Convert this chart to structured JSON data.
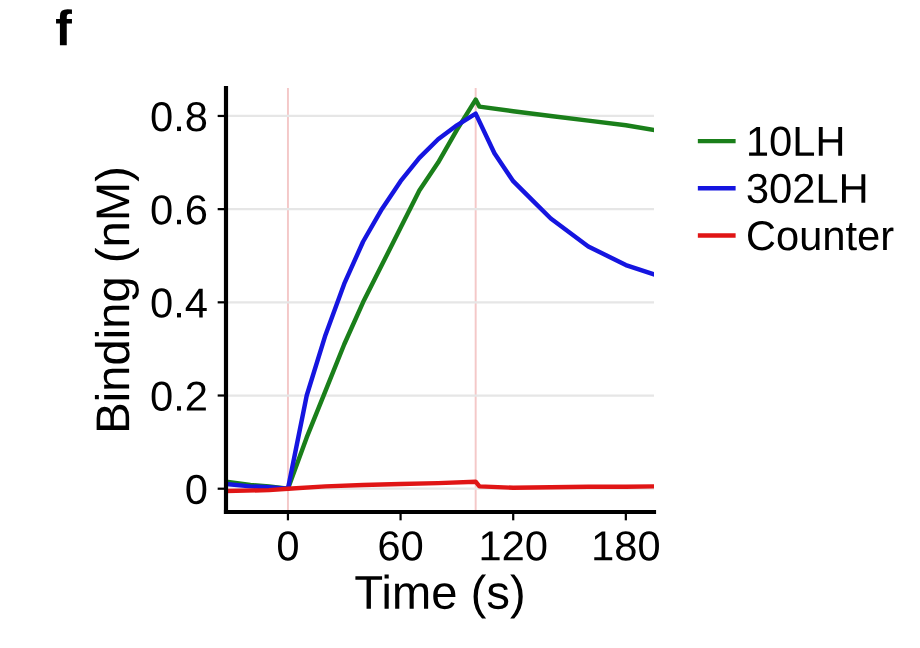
{
  "chart_data": {
    "type": "line",
    "title": "f",
    "xlabel": "Time (s)",
    "ylabel": "Binding (nM)",
    "series": [
      {
        "name": "10LH",
        "color": "#1a7f1a",
        "x": [
          -33,
          -20,
          -10,
          0,
          10,
          20,
          30,
          40,
          50,
          60,
          70,
          80,
          90,
          100,
          102,
          120,
          140,
          160,
          180,
          195
        ],
        "values": [
          0.015,
          0.008,
          0.005,
          0.0,
          0.11,
          0.21,
          0.31,
          0.4,
          0.48,
          0.56,
          0.64,
          0.7,
          0.77,
          0.835,
          0.82,
          0.81,
          0.8,
          0.79,
          0.78,
          0.77
        ]
      },
      {
        "name": "302LH",
        "color": "#1515e0",
        "x": [
          -33,
          -20,
          -10,
          0,
          10,
          20,
          30,
          40,
          50,
          60,
          70,
          80,
          90,
          100,
          110,
          120,
          130,
          140,
          150,
          160,
          170,
          180,
          195
        ],
        "values": [
          0.01,
          0.005,
          0.003,
          0.0,
          0.2,
          0.33,
          0.44,
          0.53,
          0.6,
          0.66,
          0.71,
          0.75,
          0.78,
          0.805,
          0.72,
          0.66,
          0.62,
          0.58,
          0.55,
          0.52,
          0.5,
          0.48,
          0.46
        ]
      },
      {
        "name": "Counter",
        "color": "#e01515",
        "x": [
          -33,
          -10,
          0,
          20,
          40,
          60,
          80,
          100,
          102,
          120,
          140,
          160,
          180,
          195
        ],
        "values": [
          -0.005,
          -0.003,
          0.0,
          0.005,
          0.008,
          0.01,
          0.012,
          0.015,
          0.005,
          0.002,
          0.003,
          0.004,
          0.004,
          0.005
        ]
      }
    ],
    "xlim": [
      -33,
      195
    ],
    "ylim": [
      -0.05,
      0.86
    ],
    "xticks": [
      0,
      60,
      120,
      180
    ],
    "yticks": [
      0,
      0.2,
      0.4,
      0.6,
      0.8
    ],
    "ref_lines": [
      {
        "axis": "x",
        "value": 0,
        "color": "#f4c8c8"
      },
      {
        "axis": "x",
        "value": 100,
        "color": "#f4c8c8"
      }
    ],
    "grid": "y",
    "legend": "right"
  }
}
